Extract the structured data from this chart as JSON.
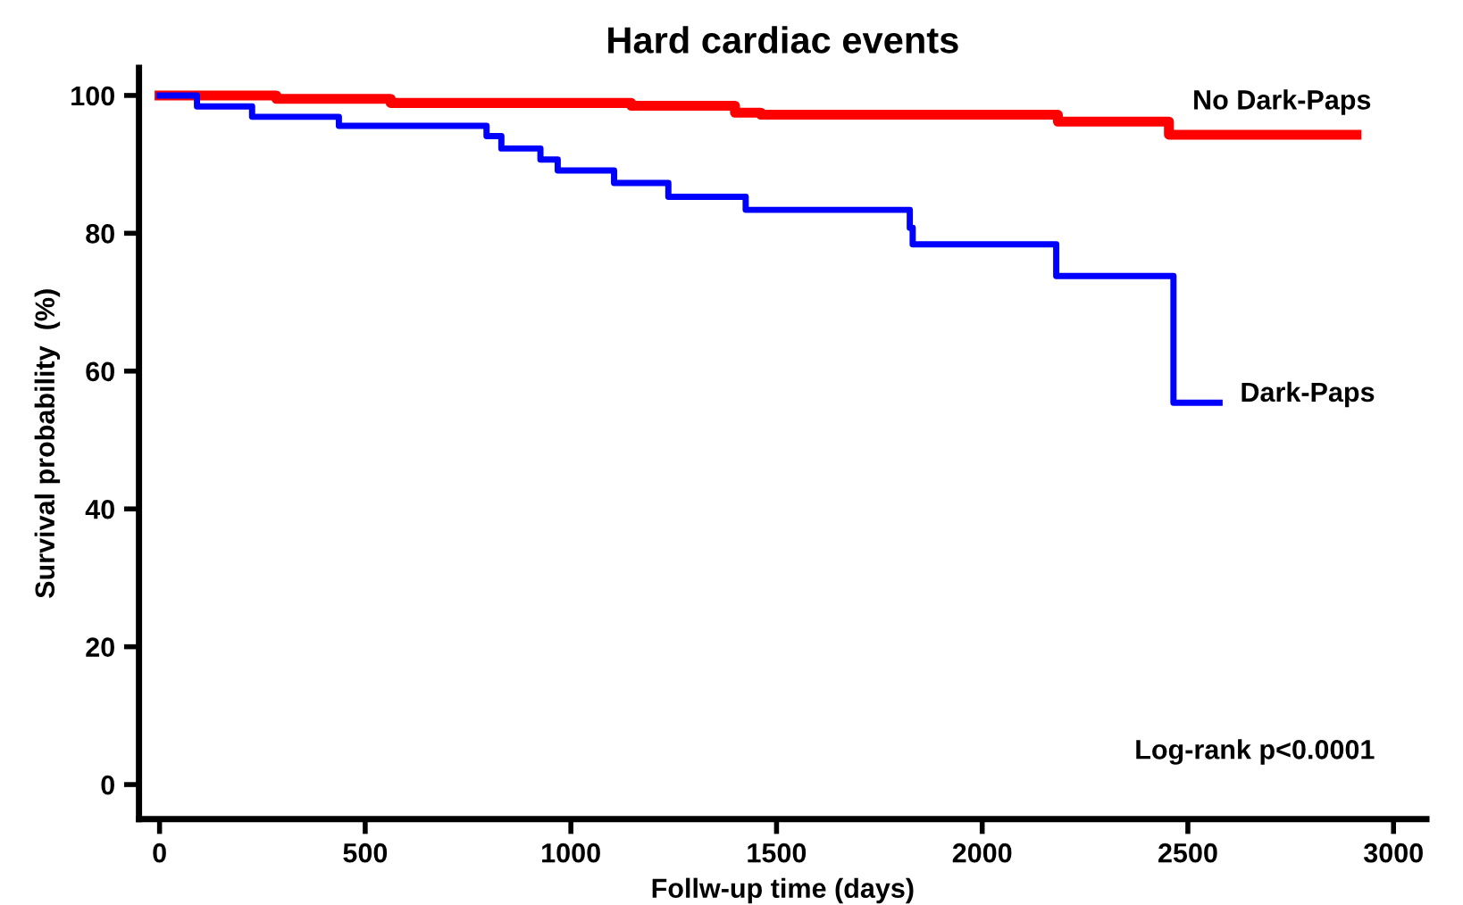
{
  "chart_data": {
    "type": "step",
    "title": "Hard cardiac events",
    "xlabel": "Follw-up time (days)",
    "ylabel": "Survival probability  (%)",
    "series": [
      {
        "name": "No Dark-Paps",
        "color": "#ff0000",
        "x": [
          0,
          284,
          562,
          1147,
          1399,
          1462,
          2184,
          2454,
          2910
        ],
        "values": [
          100,
          99.5,
          98.9,
          98.5,
          97.5,
          97.2,
          96.2,
          94.3,
          94.3
        ]
      },
      {
        "name": "Dark-Paps",
        "color": "#0000ff",
        "x": [
          0,
          91,
          225,
          436,
          795,
          831,
          926,
          968,
          1105,
          1237,
          1425,
          1824,
          1831,
          2180,
          2465,
          2577
        ],
        "values": [
          100,
          98.4,
          96.9,
          95.6,
          94.1,
          92.3,
          90.7,
          89.1,
          87.3,
          85.3,
          83.4,
          80.8,
          78.4,
          73.8,
          55.4,
          55.4
        ]
      }
    ],
    "xlim": [
      -50,
      3080
    ],
    "ylim": [
      -5,
      104
    ],
    "xticks": [
      0,
      500,
      1000,
      1500,
      2000,
      2500,
      3000
    ],
    "yticks": [
      0,
      20,
      40,
      60,
      80,
      100
    ],
    "annotations": [
      "Log-rank p<0.0001"
    ],
    "grid": false,
    "legend": false,
    "line_style": "solid"
  }
}
